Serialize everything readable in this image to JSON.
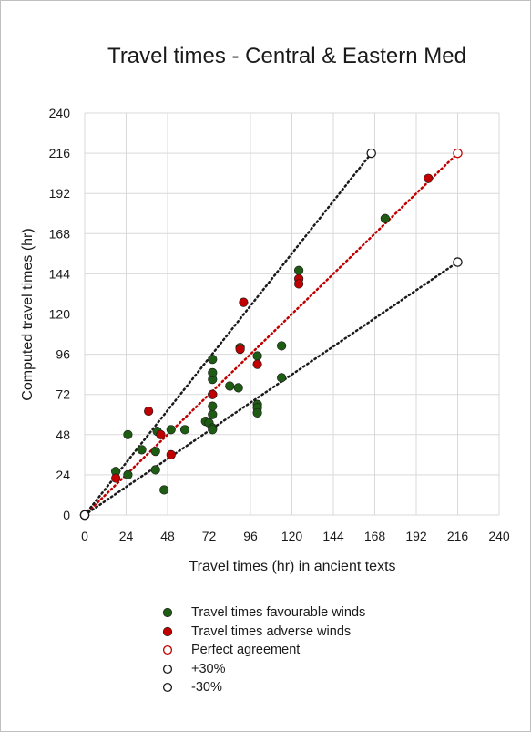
{
  "chart_data": {
    "type": "scatter",
    "title": "Travel times - Central & Eastern Med",
    "xlabel": "Travel times (hr) in ancient texts",
    "ylabel": "Computed travel times (hr)",
    "xlim": [
      0,
      240
    ],
    "ylim": [
      0,
      240
    ],
    "xticks": [
      0,
      24,
      48,
      72,
      96,
      120,
      144,
      168,
      192,
      216,
      240
    ],
    "yticks": [
      0,
      24,
      48,
      72,
      96,
      120,
      144,
      168,
      192,
      216,
      240
    ],
    "grid": true,
    "legend_position": "bottom",
    "series": [
      {
        "name": "Travel times favourable winds",
        "color": "#1e5c14",
        "marker": "filled-circle",
        "points": [
          [
            18,
            26
          ],
          [
            25,
            24
          ],
          [
            25,
            48
          ],
          [
            33,
            39
          ],
          [
            41,
            27
          ],
          [
            41,
            38
          ],
          [
            42,
            50
          ],
          [
            46,
            15
          ],
          [
            50,
            51
          ],
          [
            58,
            51
          ],
          [
            70,
            56
          ],
          [
            72,
            55
          ],
          [
            74,
            52
          ],
          [
            74,
            51
          ],
          [
            74,
            60
          ],
          [
            74,
            65
          ],
          [
            74,
            72
          ],
          [
            74,
            81
          ],
          [
            74,
            85
          ],
          [
            74,
            93
          ],
          [
            84,
            77
          ],
          [
            89,
            76
          ],
          [
            90,
            100
          ],
          [
            100,
            95
          ],
          [
            100,
            66
          ],
          [
            100,
            64
          ],
          [
            100,
            61
          ],
          [
            114,
            101
          ],
          [
            114,
            82
          ],
          [
            124,
            146
          ],
          [
            174,
            177
          ]
        ]
      },
      {
        "name": "Travel times adverse winds",
        "color": "#c00000",
        "marker": "filled-circle",
        "points": [
          [
            18,
            22
          ],
          [
            37,
            62
          ],
          [
            44,
            48
          ],
          [
            50,
            36
          ],
          [
            74,
            72
          ],
          [
            90,
            99
          ],
          [
            92,
            127
          ],
          [
            100,
            90
          ],
          [
            124,
            141
          ],
          [
            124,
            138
          ],
          [
            199,
            201
          ]
        ]
      },
      {
        "name": "Perfect agreement",
        "color": "#c00000",
        "marker": "open-circle",
        "line": "dotted",
        "points": [
          [
            0,
            0
          ],
          [
            216,
            216
          ]
        ]
      },
      {
        "name": "+30%",
        "color": "#1a1a1a",
        "marker": "open-circle",
        "line": "dotted",
        "points": [
          [
            0,
            0
          ],
          [
            166,
            216
          ]
        ]
      },
      {
        "name": "-30%",
        "color": "#1a1a1a",
        "marker": "open-circle",
        "line": "dotted",
        "points": [
          [
            0,
            0
          ],
          [
            216,
            151
          ]
        ]
      }
    ]
  }
}
